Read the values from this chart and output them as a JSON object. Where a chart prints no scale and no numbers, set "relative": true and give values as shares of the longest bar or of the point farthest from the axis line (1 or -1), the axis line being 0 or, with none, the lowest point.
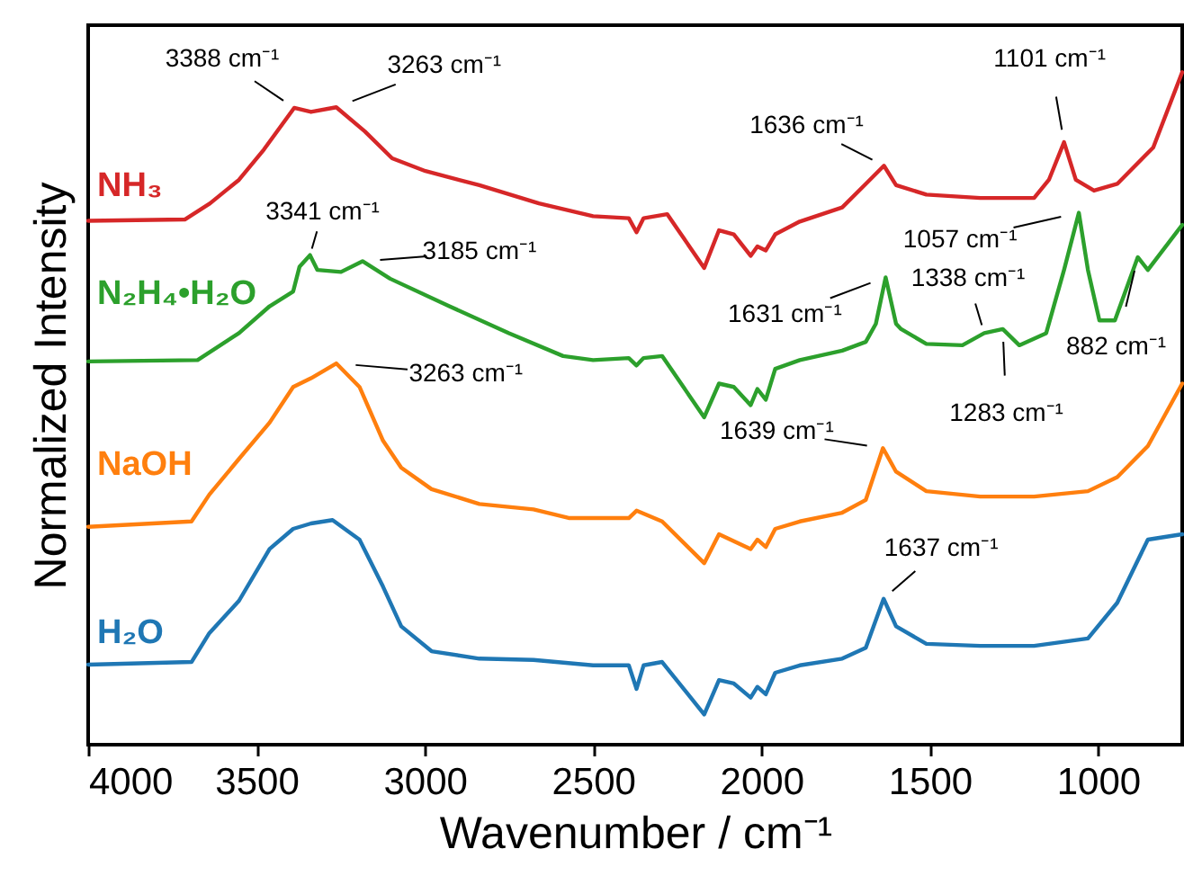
{
  "chart_data": {
    "type": "line",
    "relative": true,
    "xlabel": "Wavenumber / cm⁻¹",
    "ylabel": "Normalized Intensity",
    "xlim": [
      4000,
      750
    ],
    "xticks": [
      4000,
      3500,
      3000,
      2500,
      2000,
      1500,
      1000
    ],
    "series": [
      {
        "name": "NH₃",
        "color": "#d62728",
        "x": [
          4000,
          3713,
          3638,
          3552,
          3478,
          3388,
          3338,
          3263,
          3178,
          3097,
          2998,
          2838,
          2661,
          2500,
          2394,
          2371,
          2350,
          2280,
          2170,
          2126,
          2082,
          2032,
          2012,
          1987,
          1959,
          1886,
          1760,
          1690,
          1636,
          1600,
          1510,
          1350,
          1190,
          1146,
          1101,
          1066,
          1012,
          943,
          836,
          750
        ],
        "values": [
          0.779,
          0.781,
          0.805,
          0.84,
          0.885,
          0.947,
          0.941,
          0.948,
          0.912,
          0.872,
          0.853,
          0.832,
          0.805,
          0.786,
          0.783,
          0.762,
          0.783,
          0.789,
          0.709,
          0.765,
          0.759,
          0.727,
          0.741,
          0.735,
          0.759,
          0.778,
          0.799,
          0.834,
          0.861,
          0.832,
          0.818,
          0.813,
          0.813,
          0.84,
          0.896,
          0.84,
          0.824,
          0.834,
          0.888,
          1.0
        ]
      },
      {
        "name": "N₂H₄•H₂O",
        "color": "#2ca02c",
        "x": [
          4000,
          3675,
          3552,
          3461,
          3391,
          3372,
          3341,
          3319,
          3249,
          3185,
          3103,
          2927,
          2750,
          2589,
          2500,
          2394,
          2371,
          2350,
          2295,
          2170,
          2126,
          2082,
          2032,
          2012,
          1987,
          1959,
          1886,
          1760,
          1690,
          1660,
          1631,
          1600,
          1585,
          1510,
          1403,
          1338,
          1283,
          1234,
          1154,
          1101,
          1057,
          1030,
          996,
          950,
          882,
          852,
          750
        ],
        "values": [
          0.57,
          0.572,
          0.612,
          0.652,
          0.674,
          0.711,
          0.728,
          0.706,
          0.703,
          0.719,
          0.693,
          0.652,
          0.612,
          0.578,
          0.572,
          0.575,
          0.564,
          0.575,
          0.578,
          0.487,
          0.537,
          0.532,
          0.505,
          0.529,
          0.513,
          0.559,
          0.572,
          0.586,
          0.599,
          0.626,
          0.695,
          0.626,
          0.618,
          0.596,
          0.594,
          0.612,
          0.618,
          0.594,
          0.612,
          0.706,
          0.791,
          0.706,
          0.631,
          0.631,
          0.725,
          0.706,
          0.773
        ]
      },
      {
        "name": "NaOH",
        "color": "#ff7f0e",
        "x": [
          4000,
          3693,
          3640,
          3552,
          3461,
          3391,
          3338,
          3263,
          3194,
          3124,
          3070,
          2980,
          2838,
          2677,
          2570,
          2500,
          2394,
          2371,
          2295,
          2170,
          2126,
          2032,
          2012,
          1987,
          1959,
          1886,
          1760,
          1690,
          1639,
          1600,
          1510,
          1350,
          1190,
          1030,
          943,
          852,
          750
        ],
        "values": [
          0.324,
          0.332,
          0.372,
          0.425,
          0.479,
          0.532,
          0.545,
          0.567,
          0.532,
          0.452,
          0.412,
          0.38,
          0.358,
          0.35,
          0.337,
          0.337,
          0.337,
          0.348,
          0.332,
          0.27,
          0.313,
          0.291,
          0.305,
          0.294,
          0.321,
          0.332,
          0.345,
          0.364,
          0.441,
          0.406,
          0.377,
          0.369,
          0.369,
          0.377,
          0.398,
          0.444,
          0.537
        ]
      },
      {
        "name": "H₂O",
        "color": "#1f77b4",
        "x": [
          4000,
          3693,
          3640,
          3552,
          3461,
          3391,
          3338,
          3274,
          3194,
          3124,
          3070,
          2980,
          2838,
          2677,
          2500,
          2394,
          2371,
          2350,
          2295,
          2170,
          2126,
          2082,
          2032,
          2012,
          1987,
          1959,
          1886,
          1760,
          1690,
          1637,
          1600,
          1510,
          1350,
          1190,
          1030,
          943,
          852,
          750
        ],
        "values": [
          0.119,
          0.123,
          0.166,
          0.214,
          0.291,
          0.321,
          0.329,
          0.334,
          0.305,
          0.235,
          0.176,
          0.139,
          0.128,
          0.126,
          0.118,
          0.118,
          0.083,
          0.118,
          0.123,
          0.045,
          0.096,
          0.091,
          0.07,
          0.086,
          0.075,
          0.107,
          0.118,
          0.128,
          0.144,
          0.217,
          0.176,
          0.15,
          0.147,
          0.147,
          0.158,
          0.211,
          0.305,
          0.313
        ]
      }
    ],
    "annotations": [
      {
        "text": "3388 cm⁻¹",
        "x": 3388,
        "y": 0.947
      },
      {
        "text": "3263 cm⁻¹",
        "x": 3263,
        "y": 0.948
      },
      {
        "text": "1636 cm⁻¹",
        "x": 1636,
        "y": 0.861
      },
      {
        "text": "1101 cm⁻¹",
        "x": 1101,
        "y": 0.896
      },
      {
        "text": "3341 cm⁻¹",
        "x": 3341,
        "y": 0.728
      },
      {
        "text": "3185 cm⁻¹",
        "x": 3185,
        "y": 0.719
      },
      {
        "text": "1631 cm⁻¹",
        "x": 1631,
        "y": 0.695
      },
      {
        "text": "1338 cm⁻¹",
        "x": 1338,
        "y": 0.612
      },
      {
        "text": "1057 cm⁻¹",
        "x": 1057,
        "y": 0.791
      },
      {
        "text": "882 cm⁻¹",
        "x": 882,
        "y": 0.725
      },
      {
        "text": "1283 cm⁻¹",
        "x": 1283,
        "y": 0.618
      },
      {
        "text": "3263 cm⁻¹",
        "x": 3263,
        "y": 0.567
      },
      {
        "text": "1639 cm⁻¹",
        "x": 1639,
        "y": 0.441
      },
      {
        "text": "1637 cm⁻¹",
        "x": 1637,
        "y": 0.217
      }
    ]
  }
}
